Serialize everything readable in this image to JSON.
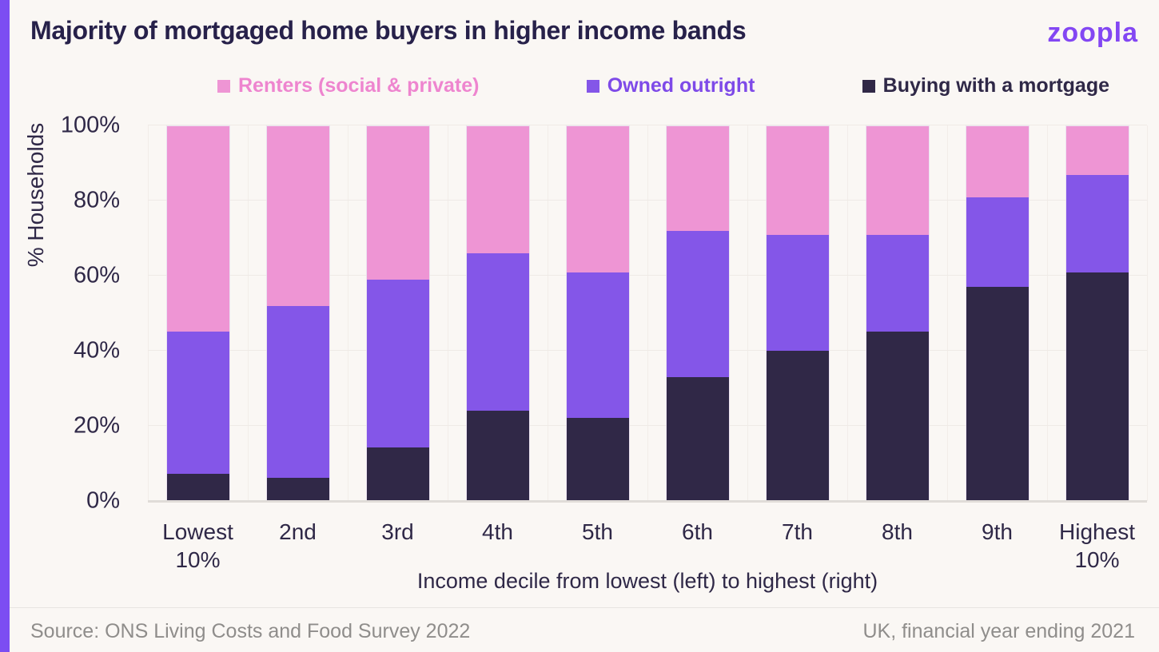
{
  "header": {
    "title": "Majority of mortgaged home buyers in higher income bands",
    "logo": "zoopla"
  },
  "legend": {
    "items": [
      {
        "label": "Renters (social & private)",
        "color": "#ee95d4",
        "text_color": "#ee85cf"
      },
      {
        "label": "Owned outright",
        "color": "#8456e8",
        "text_color": "#7e4ae8"
      },
      {
        "label": "Buying with a mortgage",
        "color": "#302847",
        "text_color": "#2f2847"
      }
    ]
  },
  "chart_data": {
    "type": "bar",
    "stacked": true,
    "title": "Majority of mortgaged home buyers in higher income bands",
    "categories": [
      "Lowest 10%",
      "2nd",
      "3rd",
      "4th",
      "5th",
      "6th",
      "7th",
      "8th",
      "9th",
      "Highest 10%"
    ],
    "series": [
      {
        "name": "Renters (social & private)",
        "color": "#ee95d4",
        "values": [
          55,
          48,
          41,
          34,
          39,
          28,
          29,
          29,
          19,
          13
        ]
      },
      {
        "name": "Owned outright",
        "color": "#8456e8",
        "values": [
          38,
          46,
          45,
          42,
          39,
          39,
          31,
          26,
          24,
          26
        ]
      },
      {
        "name": "Buying with a mortgage",
        "color": "#302847",
        "values": [
          7,
          6,
          14,
          24,
          22,
          33,
          40,
          45,
          57,
          61
        ]
      }
    ],
    "stack_order_bottom_to_top": [
      "Buying with a mortgage",
      "Owned outright",
      "Renters (social & private)"
    ],
    "xlabel": "Income decile from lowest (left) to highest (right)",
    "ylabel": "% Households",
    "ylim": [
      0,
      100
    ],
    "yticks": [
      {
        "value": 0,
        "label": "0%"
      },
      {
        "value": 20,
        "label": "20%"
      },
      {
        "value": 40,
        "label": "40%"
      },
      {
        "value": 60,
        "label": "60%"
      },
      {
        "value": 80,
        "label": "80%"
      },
      {
        "value": 100,
        "label": "100%"
      }
    ],
    "legend_position": "top",
    "grid": "faint horizontal and vertical lines"
  },
  "footer": {
    "source": "Source: ONS Living Costs and Food Survey 2022",
    "note": "UK, financial year ending 2021"
  }
}
